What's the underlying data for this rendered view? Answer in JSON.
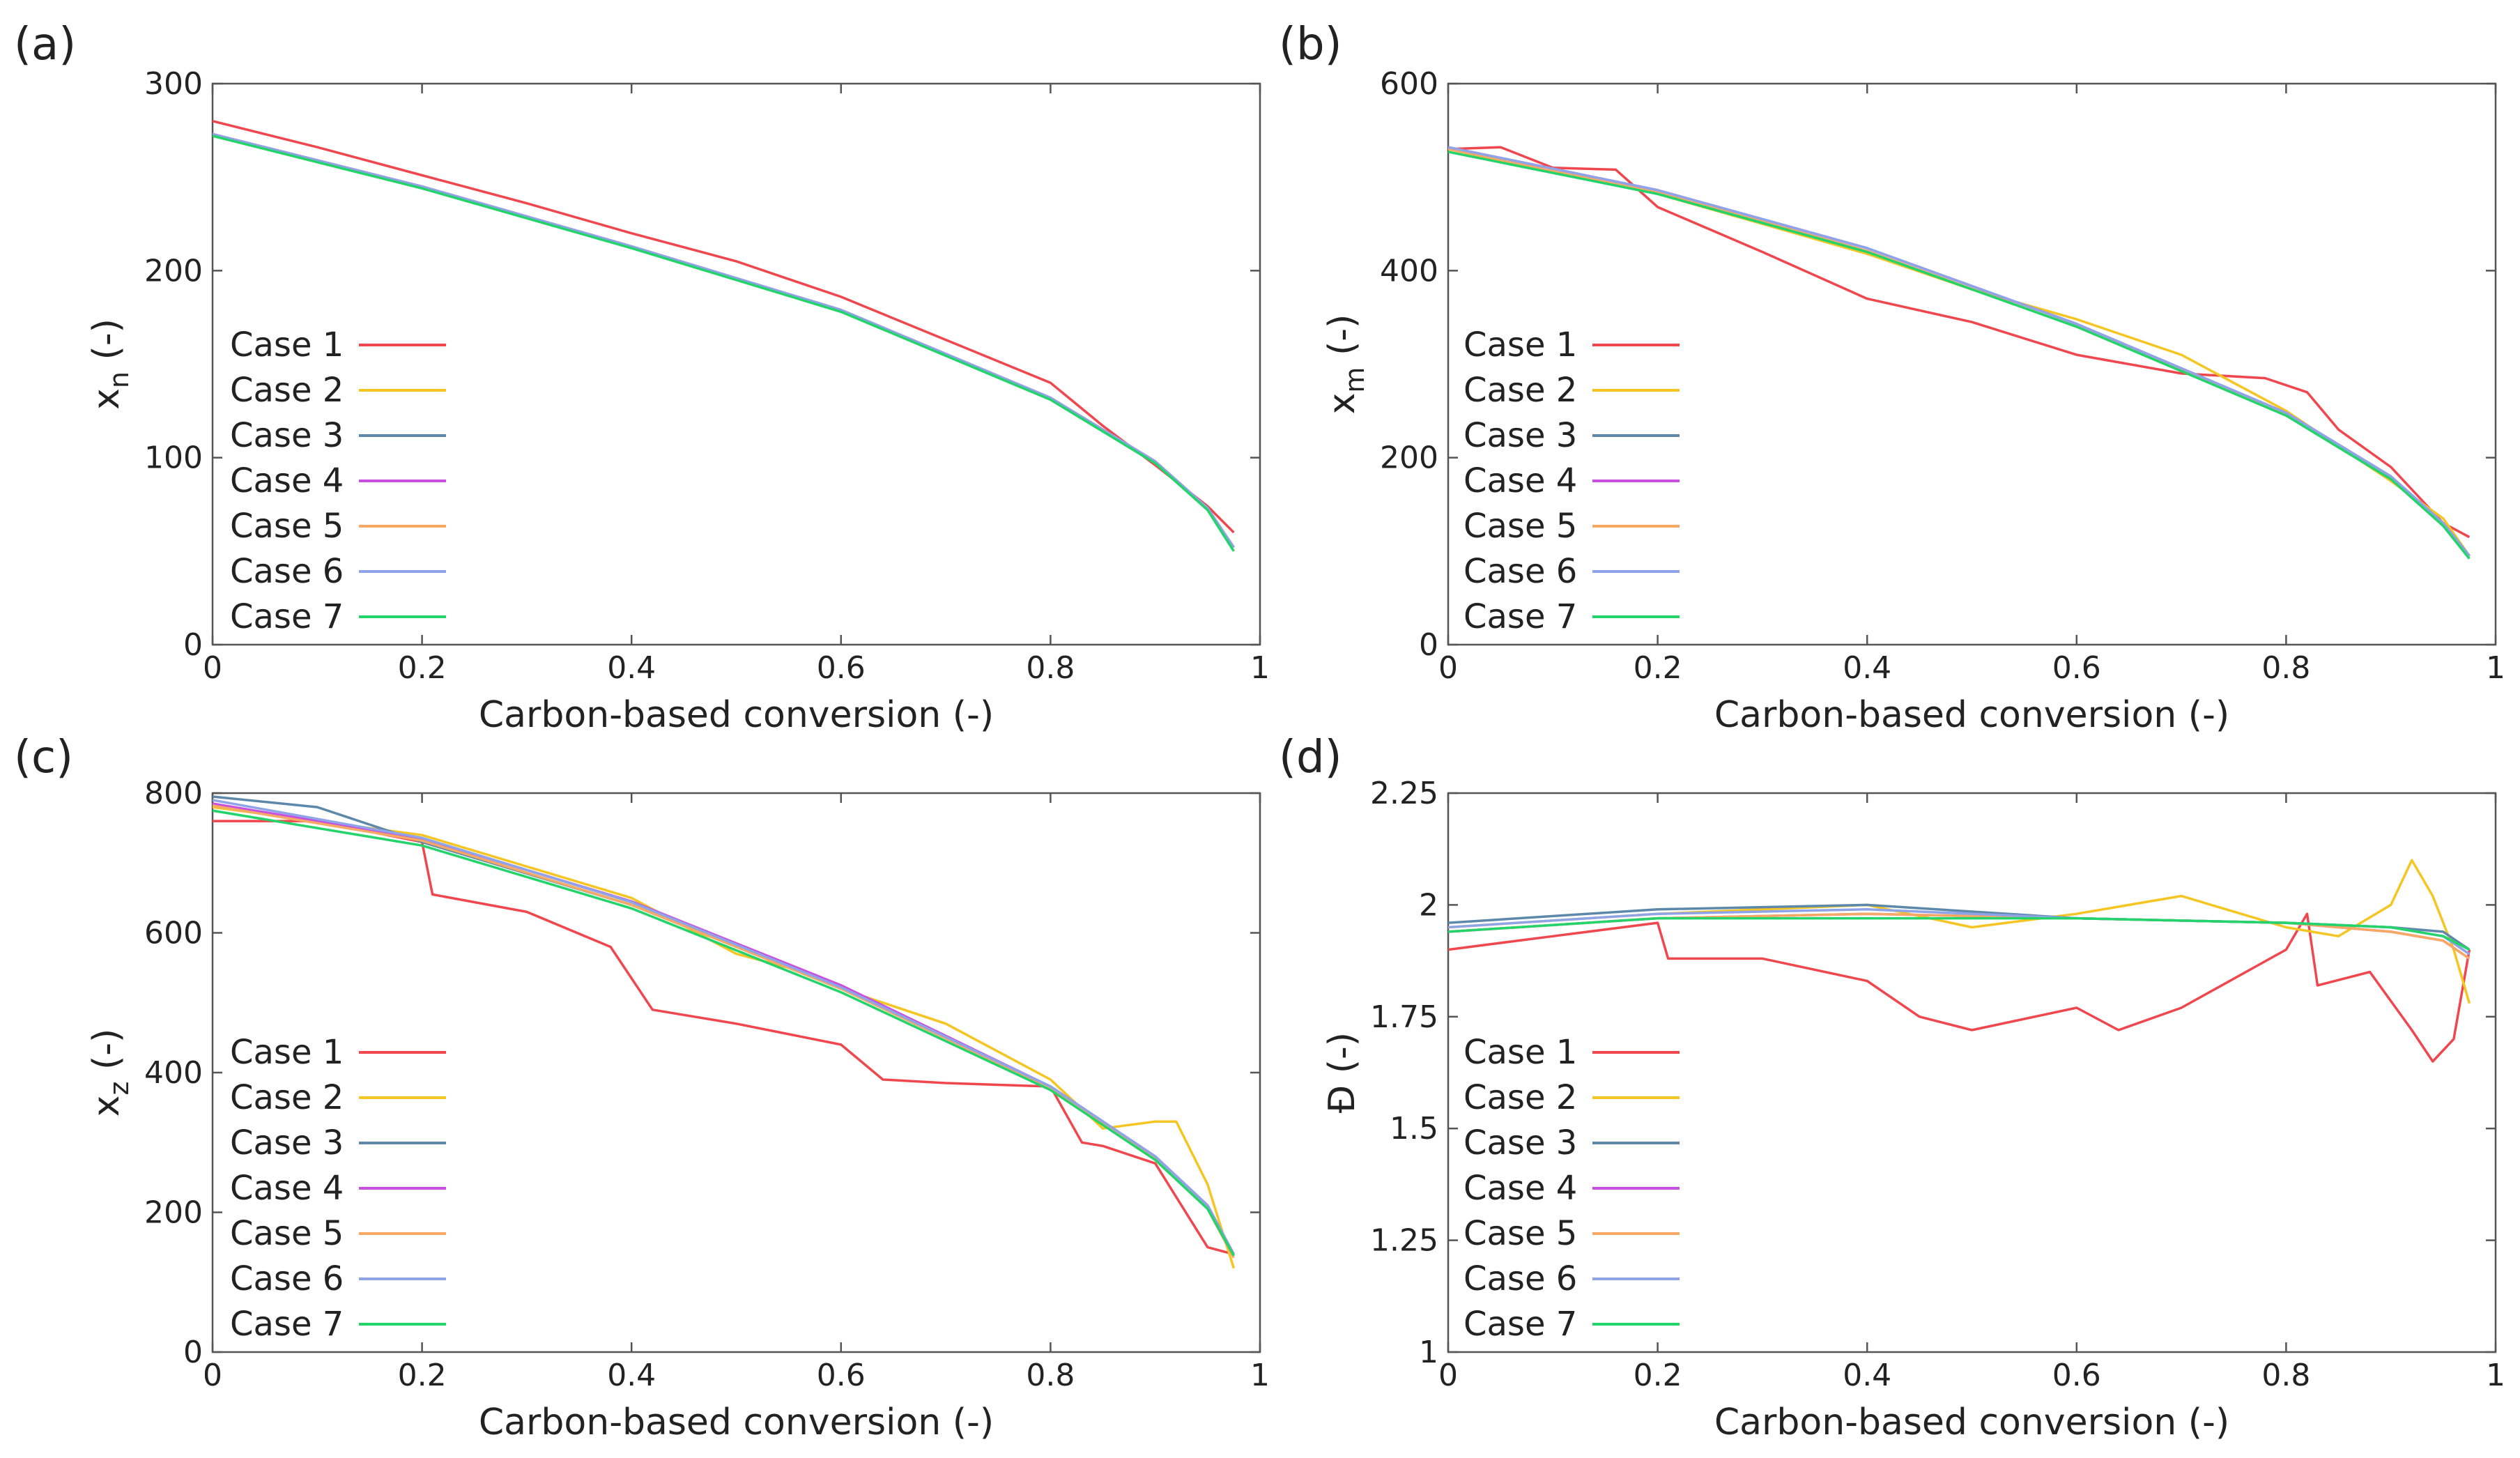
{
  "figure": {
    "colors": {
      "Case 1": "#f0474f",
      "Case 2": "#f5c623",
      "Case 3": "#5d88a9",
      "Case 4": "#c94fe0",
      "Case 5": "#f7a964",
      "Case 6": "#8fa4e8",
      "Case 7": "#22d46a"
    }
  },
  "chart_data": [
    {
      "type": "line",
      "panel_label": "(a)",
      "xlabel": "Carbon-based conversion (-)",
      "ylabel_main": "x",
      "ylabel_sub": "n",
      "ylabel_suffix": " (-)",
      "xlim": [
        0,
        1
      ],
      "ylim": [
        0,
        300
      ],
      "xticks": [
        0,
        0.2,
        0.4,
        0.6,
        0.8,
        1
      ],
      "xtick_labels": [
        "0",
        "0.2",
        "0.4",
        "0.6",
        "0.8",
        "1"
      ],
      "yticks": [
        0,
        100,
        200,
        300
      ],
      "ytick_labels": [
        "0",
        "100",
        "200",
        "300"
      ],
      "legend": "upper-left inside",
      "series": [
        {
          "name": "Case 1",
          "x": [
            0,
            0.1,
            0.2,
            0.3,
            0.4,
            0.5,
            0.6,
            0.7,
            0.8,
            0.85,
            0.9,
            0.95,
            0.975
          ],
          "y": [
            280,
            266,
            251,
            236,
            220,
            205,
            186,
            163,
            140,
            117,
            96,
            74,
            60
          ]
        },
        {
          "name": "Case 2",
          "x": [
            0,
            0.2,
            0.4,
            0.6,
            0.8,
            0.9,
            0.95,
            0.975
          ],
          "y": [
            273,
            245,
            213,
            179,
            132,
            98,
            73,
            52
          ]
        },
        {
          "name": "Case 3",
          "x": [
            0,
            0.2,
            0.4,
            0.6,
            0.8,
            0.9,
            0.95,
            0.975
          ],
          "y": [
            273,
            245,
            213,
            179,
            132,
            98,
            73,
            52
          ]
        },
        {
          "name": "Case 4",
          "x": [
            0,
            0.2,
            0.4,
            0.6,
            0.8,
            0.9,
            0.95,
            0.975
          ],
          "y": [
            273,
            245,
            213,
            179,
            132,
            98,
            73,
            52
          ]
        },
        {
          "name": "Case 5",
          "x": [
            0,
            0.2,
            0.4,
            0.6,
            0.8,
            0.9,
            0.95,
            0.975
          ],
          "y": [
            273,
            245,
            213,
            179,
            132,
            98,
            73,
            52
          ]
        },
        {
          "name": "Case 6",
          "x": [
            0,
            0.2,
            0.4,
            0.6,
            0.8,
            0.9,
            0.95,
            0.975
          ],
          "y": [
            273,
            245,
            213,
            179,
            132,
            98,
            73,
            52
          ]
        },
        {
          "name": "Case 7",
          "x": [
            0,
            0.2,
            0.4,
            0.6,
            0.8,
            0.9,
            0.95,
            0.975
          ],
          "y": [
            272,
            244,
            212,
            178,
            131,
            97,
            72,
            50
          ]
        }
      ]
    },
    {
      "type": "line",
      "panel_label": "(b)",
      "xlabel": "Carbon-based conversion (-)",
      "ylabel_main": "x",
      "ylabel_sub": "m",
      "ylabel_suffix": " (-)",
      "xlim": [
        0,
        1
      ],
      "ylim": [
        0,
        600
      ],
      "xticks": [
        0,
        0.2,
        0.4,
        0.6,
        0.8,
        1
      ],
      "xtick_labels": [
        "0",
        "0.2",
        "0.4",
        "0.6",
        "0.8",
        "1"
      ],
      "yticks": [
        0,
        200,
        400,
        600
      ],
      "ytick_labels": [
        "0",
        "200",
        "400",
        "600"
      ],
      "legend": "upper-left inside",
      "series": [
        {
          "name": "Case 1",
          "x": [
            0,
            0.05,
            0.1,
            0.16,
            0.2,
            0.3,
            0.4,
            0.5,
            0.6,
            0.7,
            0.78,
            0.82,
            0.85,
            0.9,
            0.95,
            0.975
          ],
          "y": [
            530,
            532,
            510,
            508,
            468,
            420,
            370,
            345,
            310,
            290,
            285,
            270,
            230,
            190,
            130,
            115
          ]
        },
        {
          "name": "Case 2",
          "x": [
            0,
            0.2,
            0.4,
            0.5,
            0.6,
            0.7,
            0.8,
            0.9,
            0.95,
            0.975
          ],
          "y": [
            530,
            482,
            418,
            380,
            348,
            310,
            250,
            175,
            135,
            95
          ]
        },
        {
          "name": "Case 3",
          "x": [
            0,
            0.2,
            0.4,
            0.6,
            0.8,
            0.9,
            0.95,
            0.975
          ],
          "y": [
            532,
            486,
            424,
            343,
            248,
            180,
            130,
            95
          ]
        },
        {
          "name": "Case 4",
          "x": [
            0,
            0.2,
            0.4,
            0.6,
            0.8,
            0.9,
            0.95,
            0.975
          ],
          "y": [
            532,
            486,
            424,
            343,
            248,
            180,
            130,
            95
          ]
        },
        {
          "name": "Case 5",
          "x": [
            0,
            0.2,
            0.4,
            0.6,
            0.8,
            0.9,
            0.95,
            0.975
          ],
          "y": [
            530,
            484,
            421,
            340,
            246,
            178,
            128,
            94
          ]
        },
        {
          "name": "Case 6",
          "x": [
            0,
            0.2,
            0.4,
            0.6,
            0.8,
            0.9,
            0.95,
            0.975
          ],
          "y": [
            532,
            486,
            424,
            343,
            248,
            180,
            130,
            95
          ]
        },
        {
          "name": "Case 7",
          "x": [
            0,
            0.2,
            0.4,
            0.6,
            0.8,
            0.9,
            0.95,
            0.975
          ],
          "y": [
            527,
            482,
            420,
            340,
            245,
            177,
            127,
            92
          ]
        }
      ]
    },
    {
      "type": "line",
      "panel_label": "(c)",
      "xlabel": "Carbon-based conversion (-)",
      "ylabel_main": "x",
      "ylabel_sub": "z",
      "ylabel_suffix": " (-)",
      "xlim": [
        0,
        1
      ],
      "ylim": [
        0,
        800
      ],
      "xticks": [
        0,
        0.2,
        0.4,
        0.6,
        0.8,
        1
      ],
      "xtick_labels": [
        "0",
        "0.2",
        "0.4",
        "0.6",
        "0.8",
        "1"
      ],
      "yticks": [
        0,
        200,
        400,
        600,
        800
      ],
      "ytick_labels": [
        "0",
        "200",
        "400",
        "600",
        "800"
      ],
      "legend": "lower-left inside",
      "series": [
        {
          "name": "Case 1",
          "x": [
            0,
            0.1,
            0.2,
            0.21,
            0.3,
            0.38,
            0.42,
            0.5,
            0.6,
            0.64,
            0.7,
            0.8,
            0.83,
            0.85,
            0.9,
            0.95,
            0.975
          ],
          "y": [
            760,
            760,
            730,
            655,
            630,
            580,
            490,
            470,
            440,
            390,
            385,
            380,
            300,
            295,
            270,
            150,
            140
          ]
        },
        {
          "name": "Case 2",
          "x": [
            0,
            0.2,
            0.4,
            0.5,
            0.55,
            0.6,
            0.7,
            0.8,
            0.85,
            0.9,
            0.92,
            0.95,
            0.975
          ],
          "y": [
            780,
            740,
            650,
            570,
            550,
            520,
            470,
            390,
            320,
            330,
            330,
            240,
            120
          ]
        },
        {
          "name": "Case 3",
          "x": [
            0,
            0.1,
            0.2,
            0.4,
            0.6,
            0.8,
            0.9,
            0.95,
            0.975
          ],
          "y": [
            795,
            780,
            730,
            640,
            520,
            380,
            280,
            210,
            140
          ]
        },
        {
          "name": "Case 4",
          "x": [
            0,
            0.2,
            0.4,
            0.6,
            0.8,
            0.9,
            0.95,
            0.975
          ],
          "y": [
            785,
            735,
            645,
            525,
            380,
            280,
            210,
            140
          ]
        },
        {
          "name": "Case 5",
          "x": [
            0,
            0.2,
            0.4,
            0.6,
            0.8,
            0.9,
            0.95,
            0.975
          ],
          "y": [
            782,
            732,
            640,
            520,
            378,
            278,
            205,
            135
          ]
        },
        {
          "name": "Case 6",
          "x": [
            0,
            0.2,
            0.4,
            0.6,
            0.8,
            0.9,
            0.95,
            0.975
          ],
          "y": [
            790,
            736,
            644,
            522,
            380,
            280,
            210,
            140
          ]
        },
        {
          "name": "Case 7",
          "x": [
            0,
            0.2,
            0.4,
            0.6,
            0.8,
            0.9,
            0.95,
            0.975
          ],
          "y": [
            775,
            725,
            635,
            515,
            375,
            275,
            205,
            138
          ]
        }
      ]
    },
    {
      "type": "line",
      "panel_label": "(d)",
      "xlabel": "Carbon-based conversion (-)",
      "ylabel_main": "Đ",
      "ylabel_sub": "",
      "ylabel_suffix": " (-)",
      "xlim": [
        0,
        1
      ],
      "ylim": [
        1,
        2.25
      ],
      "xticks": [
        0,
        0.2,
        0.4,
        0.6,
        0.8,
        1
      ],
      "xtick_labels": [
        "0",
        "0.2",
        "0.4",
        "0.6",
        "0.8",
        "1"
      ],
      "yticks": [
        1,
        1.25,
        1.5,
        1.75,
        2,
        2.25
      ],
      "ytick_labels": [
        "1",
        "1.25",
        "1.5",
        "1.75",
        "2",
        "2.25"
      ],
      "legend": "lower-left inside",
      "series": [
        {
          "name": "Case 1",
          "x": [
            0,
            0.1,
            0.2,
            0.21,
            0.3,
            0.4,
            0.45,
            0.5,
            0.6,
            0.64,
            0.7,
            0.8,
            0.82,
            0.83,
            0.88,
            0.92,
            0.94,
            0.96,
            0.975
          ],
          "y": [
            1.9,
            1.93,
            1.96,
            1.88,
            1.88,
            1.83,
            1.75,
            1.72,
            1.77,
            1.72,
            1.77,
            1.9,
            1.98,
            1.82,
            1.85,
            1.72,
            1.65,
            1.7,
            1.9
          ]
        },
        {
          "name": "Case 2",
          "x": [
            0,
            0.2,
            0.4,
            0.5,
            0.6,
            0.7,
            0.8,
            0.85,
            0.9,
            0.92,
            0.94,
            0.96,
            0.975
          ],
          "y": [
            1.95,
            1.98,
            2.0,
            1.95,
            1.98,
            2.02,
            1.95,
            1.93,
            2.0,
            2.1,
            2.02,
            1.9,
            1.78
          ]
        },
        {
          "name": "Case 3",
          "x": [
            0,
            0.2,
            0.4,
            0.6,
            0.8,
            0.9,
            0.95,
            0.975
          ],
          "y": [
            1.96,
            1.99,
            2.0,
            1.97,
            1.96,
            1.95,
            1.94,
            1.9
          ]
        },
        {
          "name": "Case 4",
          "x": [
            0,
            0.2,
            0.4,
            0.6,
            0.8,
            0.9,
            0.95,
            0.975
          ],
          "y": [
            1.94,
            1.97,
            1.98,
            1.97,
            1.96,
            1.94,
            1.92,
            1.88
          ]
        },
        {
          "name": "Case 5",
          "x": [
            0,
            0.2,
            0.4,
            0.6,
            0.8,
            0.9,
            0.95,
            0.975
          ],
          "y": [
            1.94,
            1.97,
            1.98,
            1.97,
            1.96,
            1.94,
            1.92,
            1.88
          ]
        },
        {
          "name": "Case 6",
          "x": [
            0,
            0.2,
            0.4,
            0.6,
            0.8,
            0.9,
            0.95,
            0.975
          ],
          "y": [
            1.95,
            1.98,
            1.99,
            1.97,
            1.96,
            1.95,
            1.93,
            1.89
          ]
        },
        {
          "name": "Case 7",
          "x": [
            0,
            0.2,
            0.4,
            0.6,
            0.8,
            0.9,
            0.95,
            0.975
          ],
          "y": [
            1.94,
            1.97,
            1.97,
            1.97,
            1.96,
            1.95,
            1.93,
            1.9
          ]
        }
      ]
    }
  ]
}
